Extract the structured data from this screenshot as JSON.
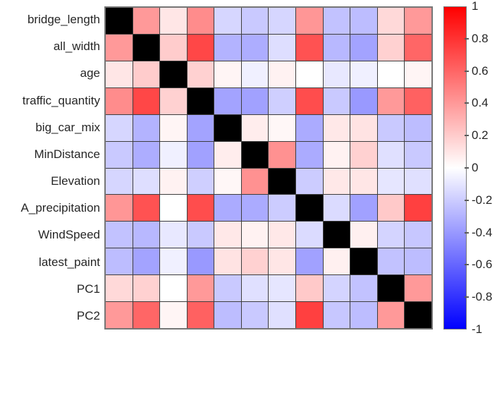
{
  "colors": {
    "background": "#ffffff",
    "grid_line": "#3d3d3d",
    "axis_border": "#757575",
    "text": "#262626",
    "diagonal": "#000000",
    "colormap_min": "#0000ff",
    "colormap_mid": "#ffffff",
    "colormap_max": "#ff0000"
  },
  "chart_data": {
    "type": "heatmap",
    "title": "",
    "xlabel": "",
    "ylabel": "",
    "grid": true,
    "legend_position": "right-colorbar",
    "categories": [
      "bridge_length",
      "all_width",
      "age",
      "traffic_quantity",
      "big_car_mix",
      "MinDistance",
      "Elevation",
      "A_precipitation",
      "WindSpeed",
      "latest_paint",
      "PC1",
      "PC2"
    ],
    "matrix": [
      [
        null,
        0.4,
        0.1,
        0.45,
        -0.16,
        -0.21,
        -0.16,
        0.41,
        -0.24,
        -0.26,
        0.15,
        0.4
      ],
      [
        0.4,
        null,
        0.2,
        0.72,
        -0.3,
        -0.32,
        -0.13,
        0.68,
        -0.28,
        -0.36,
        0.18,
        0.6
      ],
      [
        0.1,
        0.2,
        null,
        0.18,
        0.04,
        -0.06,
        0.05,
        0.0,
        -0.09,
        -0.06,
        0.0,
        0.04
      ],
      [
        0.45,
        0.72,
        0.18,
        null,
        -0.36,
        -0.37,
        -0.19,
        0.7,
        -0.21,
        -0.4,
        0.4,
        0.62
      ],
      [
        -0.16,
        -0.3,
        0.04,
        -0.36,
        null,
        0.07,
        0.03,
        -0.33,
        0.09,
        0.11,
        -0.21,
        -0.26
      ],
      [
        -0.21,
        -0.32,
        -0.06,
        -0.37,
        0.07,
        null,
        0.43,
        -0.33,
        0.05,
        0.18,
        -0.12,
        -0.21
      ],
      [
        -0.16,
        -0.13,
        0.05,
        -0.19,
        0.03,
        0.43,
        null,
        -0.2,
        0.09,
        0.1,
        -0.1,
        -0.12
      ],
      [
        0.41,
        0.68,
        0.0,
        0.7,
        -0.33,
        -0.33,
        -0.2,
        null,
        -0.14,
        -0.37,
        0.21,
        0.75
      ],
      [
        -0.24,
        -0.28,
        -0.09,
        -0.21,
        0.09,
        0.05,
        0.09,
        -0.14,
        null,
        0.06,
        -0.17,
        -0.22
      ],
      [
        -0.26,
        -0.36,
        -0.06,
        -0.4,
        0.11,
        0.18,
        0.1,
        -0.37,
        0.06,
        null,
        -0.24,
        -0.26
      ],
      [
        0.15,
        0.18,
        0.0,
        0.4,
        -0.21,
        -0.12,
        -0.1,
        0.21,
        -0.17,
        -0.24,
        null,
        0.4
      ],
      [
        0.4,
        0.6,
        0.04,
        0.62,
        -0.26,
        -0.21,
        -0.12,
        0.75,
        -0.22,
        -0.26,
        0.4,
        null
      ]
    ],
    "colorbar": {
      "min": -1,
      "max": 1,
      "tick_values": [
        1,
        0.8,
        0.6,
        0.4,
        0.2,
        0,
        -0.2,
        -0.4,
        -0.6,
        -0.8,
        -1
      ],
      "tick_labels": [
        "1",
        "0.8",
        "0.6",
        "0.4",
        "0.2",
        "0",
        "-0.2",
        "-0.4",
        "-0.6",
        "-0.8",
        "-1"
      ]
    }
  }
}
